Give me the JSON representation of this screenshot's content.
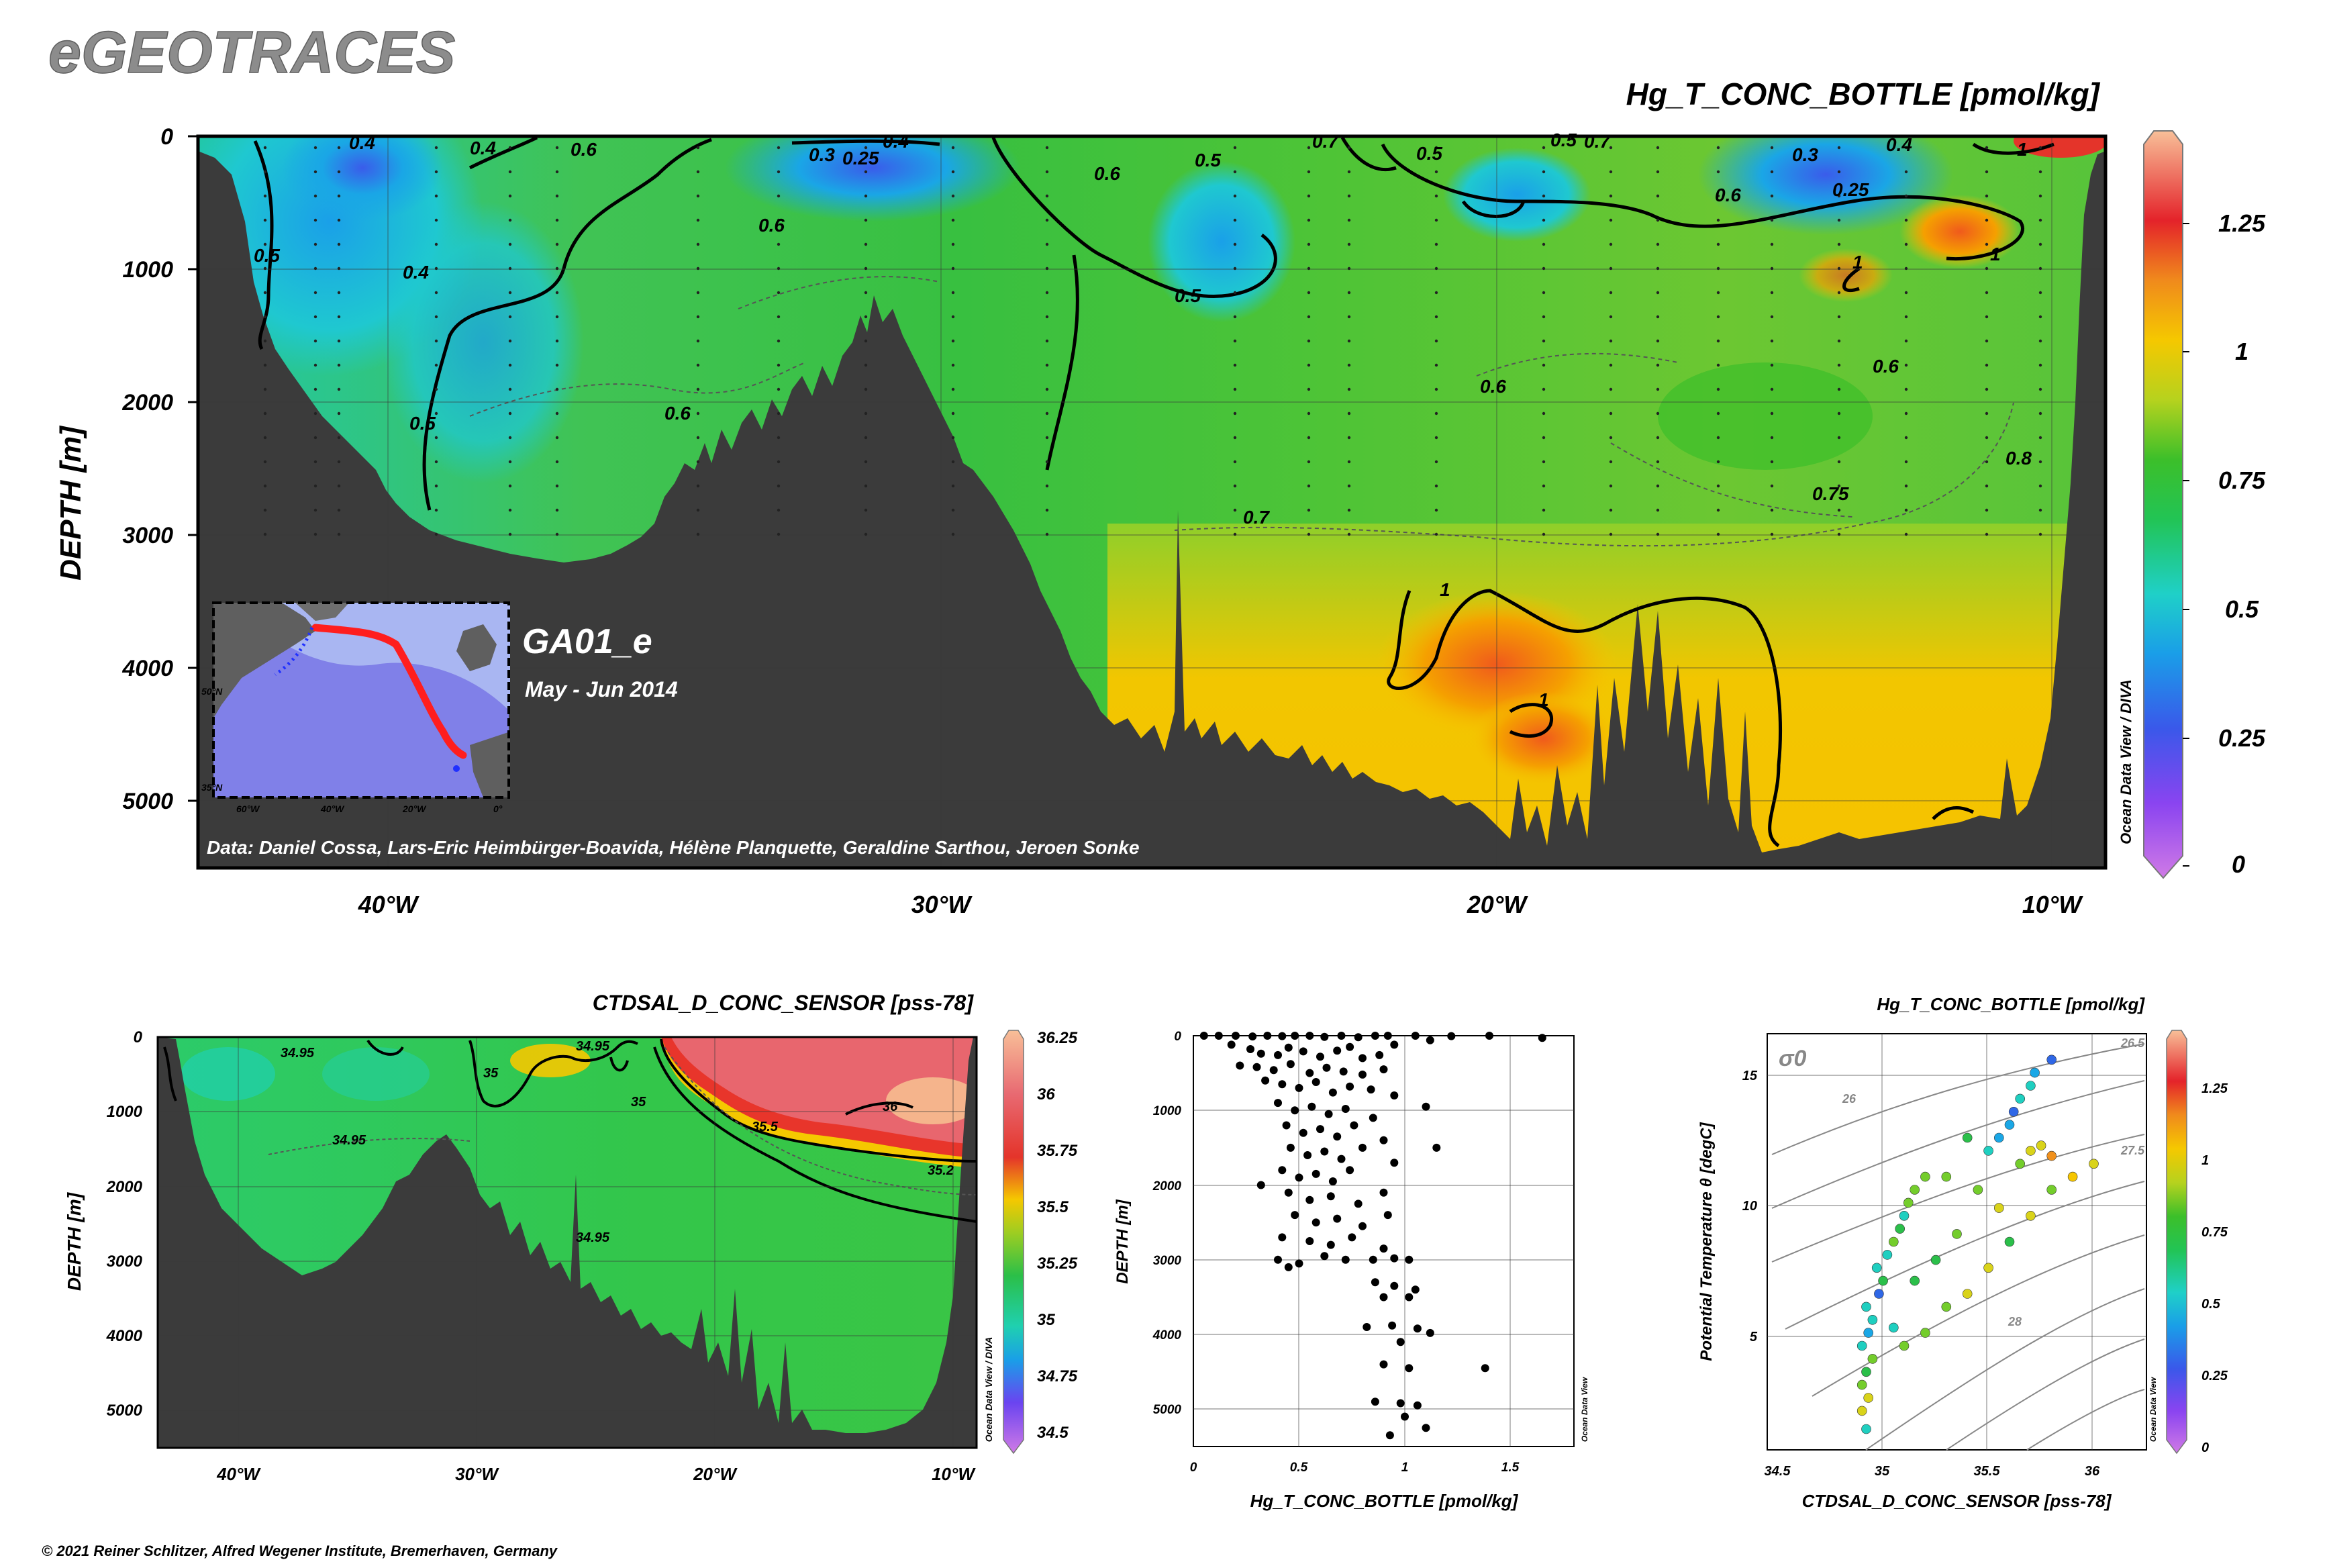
{
  "logo": "eGEOTRACES",
  "copyright": "© 2021 Reiner Schlitzer, Alfred Wegener Institute, Bremerhaven, Germany",
  "colors": {
    "bathymetry": "#3b3b3b",
    "scale": [
      "#d07ae6",
      "#7a3cf2",
      "#2f67e6",
      "#1aa7e6",
      "#1fcfc0",
      "#2bbf4a",
      "#74cd2c",
      "#d9d31a",
      "#f6c600",
      "#f0901c",
      "#e43423",
      "#f6b48c"
    ]
  },
  "main": {
    "title": "Hg_T_CONC_BOTTLE [pmol/kg]",
    "ylabel": "DEPTH [m]",
    "yticks": [
      "0",
      "1000",
      "2000",
      "3000",
      "4000",
      "5000"
    ],
    "xticks": [
      "40°W",
      "30°W",
      "20°W",
      "10°W"
    ],
    "cruise": "GA01_e",
    "dates": "May - Jun 2014",
    "credits": "Data: Daniel Cossa, Lars-Eric Heimbürger-Boavida, Hélène Planquette, Geraldine Sarthou, Jeroen Sonke",
    "odv": "Ocean Data View / DIVA",
    "colorbar_ticks": [
      "0",
      "0.25",
      "0.5",
      "0.75",
      "1",
      "1.25"
    ],
    "contour_labels": [
      "0.25",
      "0.3",
      "0.4",
      "0.5",
      "0.6",
      "0.7",
      "0.75",
      "0.8",
      "1"
    ],
    "inset": {
      "lat_labels": [
        "50°N",
        "35°N"
      ],
      "lon_labels": [
        "60°W",
        "40°W",
        "20°W",
        "0°"
      ]
    }
  },
  "sal": {
    "title": "CTDSAL_D_CONC_SENSOR [pss-78]",
    "ylabel": "DEPTH [m]",
    "yticks": [
      "0",
      "1000",
      "2000",
      "3000",
      "4000",
      "5000"
    ],
    "xticks": [
      "40°W",
      "30°W",
      "20°W",
      "10°W"
    ],
    "odv": "Ocean Data View / DIVA",
    "colorbar_ticks": [
      "34.5",
      "34.75",
      "35",
      "35.25",
      "35.5",
      "35.75",
      "36",
      "36.25"
    ],
    "contour_labels": [
      "34.95",
      "35",
      "35.2",
      "35.5",
      "36"
    ]
  },
  "profile": {
    "ylabel": "DEPTH [m]",
    "xlabel": "Hg_T_CONC_BOTTLE [pmol/kg]",
    "yticks": [
      "0",
      "1000",
      "2000",
      "3000",
      "4000",
      "5000"
    ],
    "xticks": [
      "0",
      "0.5",
      "1",
      "1.5"
    ],
    "odv": "Ocean Data View"
  },
  "ts": {
    "title": "Hg_T_CONC_BOTTLE [pmol/kg]",
    "xlabel": "CTDSAL_D_CONC_SENSOR [pss-78]",
    "ylabel": "Potential Temperature θ [degC]",
    "sigma": "σ0",
    "xticks": [
      "34.5",
      "35",
      "35.5",
      "36"
    ],
    "yticks": [
      "5",
      "10",
      "15"
    ],
    "isopycnal_labels": [
      "26",
      "26.5",
      "27.5",
      "28"
    ],
    "odv": "Ocean Data View",
    "colorbar_ticks": [
      "0",
      "0.25",
      "0.5",
      "0.75",
      "1",
      "1.25"
    ]
  },
  "chart_data": [
    {
      "type": "heatmap",
      "title": "Hg_T_CONC_BOTTLE [pmol/kg]",
      "ylabel": "DEPTH [m]",
      "xlim": [
        -43.5,
        -9
      ],
      "ylim": [
        5500,
        0
      ],
      "colorbar_range": [
        0,
        1.4
      ],
      "contour_levels": [
        0.25,
        0.3,
        0.4,
        0.5,
        0.6,
        0.7,
        0.75,
        0.8,
        1
      ],
      "depth_layers": [
        {
          "depth": 0,
          "lon": [
            -43,
            -38,
            -32,
            -27,
            -22,
            -18,
            -14,
            -10
          ],
          "value": [
            0.45,
            0.6,
            0.3,
            0.6,
            0.65,
            0.5,
            0.3,
            1.2
          ]
        },
        {
          "depth": 500,
          "lon": [
            -43,
            -38,
            -32,
            -27,
            -22,
            -18,
            -14,
            -10
          ],
          "value": [
            0.45,
            0.55,
            0.55,
            0.6,
            0.5,
            0.65,
            0.6,
            1.0
          ]
        },
        {
          "depth": 1000,
          "lon": [
            -43,
            -38,
            -32,
            -27,
            -22,
            -18,
            -14,
            -10
          ],
          "value": [
            0.4,
            0.55,
            0.6,
            0.6,
            0.55,
            0.7,
            0.85,
            0.8
          ]
        },
        {
          "depth": 2000,
          "lon": [
            -43,
            -38,
            -32,
            -27,
            -22,
            -18,
            -14,
            -10
          ],
          "value": [
            0.4,
            0.55,
            0.6,
            0.65,
            0.65,
            0.7,
            0.75,
            0.8
          ]
        },
        {
          "depth": 3000,
          "lon": [
            -38,
            -27,
            -22,
            -18,
            -14,
            -10
          ],
          "value": [
            0.45,
            0.7,
            0.8,
            0.85,
            0.85,
            0.85
          ]
        },
        {
          "depth": 4000,
          "lon": [
            -22,
            -18,
            -14,
            -10
          ],
          "value": [
            0.95,
            1.05,
            0.95,
            0.9
          ]
        },
        {
          "depth": 5000,
          "lon": [
            -14,
            -10
          ],
          "value": [
            0.9,
            0.9
          ]
        }
      ]
    },
    {
      "type": "heatmap",
      "title": "CTDSAL_D_CONC_SENSOR [pss-78]",
      "ylabel": "DEPTH [m]",
      "xlim": [
        -43.5,
        -9
      ],
      "ylim": [
        5500,
        0
      ],
      "colorbar_range": [
        34.45,
        36.3
      ],
      "contour_levels": [
        34.95,
        35,
        35.2,
        35.5,
        36
      ],
      "depth_layers": [
        {
          "depth": 0,
          "lon": [
            -43,
            -36,
            -30,
            -24,
            -18,
            -12
          ],
          "value": [
            34.9,
            34.95,
            35.0,
            35.1,
            35.7,
            35.7
          ]
        },
        {
          "depth": 500,
          "lon": [
            -43,
            -36,
            -30,
            -24,
            -18,
            -12
          ],
          "value": [
            34.9,
            34.95,
            34.95,
            35.0,
            35.65,
            35.9
          ]
        },
        {
          "depth": 1000,
          "lon": [
            -43,
            -36,
            -30,
            -24,
            -18,
            -12
          ],
          "value": [
            34.95,
            34.95,
            34.95,
            34.98,
            35.3,
            35.75
          ]
        },
        {
          "depth": 1500,
          "lon": [
            -43,
            -30,
            -20,
            -12
          ],
          "value": [
            34.95,
            34.95,
            35.05,
            35.4
          ]
        },
        {
          "depth": 3000,
          "lon": [
            -43,
            -30,
            -20,
            -12
          ],
          "value": [
            34.93,
            34.93,
            34.94,
            34.95
          ]
        }
      ]
    },
    {
      "type": "scatter",
      "xlabel": "Hg_T_CONC_BOTTLE [pmol/kg]",
      "ylabel": "DEPTH [m]",
      "xlim": [
        0,
        1.8
      ],
      "ylim": [
        5500,
        0
      ],
      "points": [
        [
          0.05,
          0
        ],
        [
          0.12,
          0
        ],
        [
          0.2,
          0
        ],
        [
          0.28,
          10
        ],
        [
          0.35,
          0
        ],
        [
          0.42,
          5
        ],
        [
          0.48,
          0
        ],
        [
          0.55,
          0
        ],
        [
          0.62,
          15
        ],
        [
          0.7,
          0
        ],
        [
          0.78,
          20
        ],
        [
          0.86,
          0
        ],
        [
          0.92,
          0
        ],
        [
          1.05,
          0
        ],
        [
          1.22,
          5
        ],
        [
          1.4,
          0
        ],
        [
          1.65,
          30
        ],
        [
          0.18,
          120
        ],
        [
          0.27,
          180
        ],
        [
          0.32,
          240
        ],
        [
          0.4,
          260
        ],
        [
          0.45,
          160
        ],
        [
          0.52,
          210
        ],
        [
          0.6,
          280
        ],
        [
          0.68,
          200
        ],
        [
          0.74,
          150
        ],
        [
          0.8,
          300
        ],
        [
          0.88,
          260
        ],
        [
          0.95,
          120
        ],
        [
          1.12,
          60
        ],
        [
          0.22,
          400
        ],
        [
          0.3,
          420
        ],
        [
          0.38,
          460
        ],
        [
          0.46,
          380
        ],
        [
          0.55,
          500
        ],
        [
          0.63,
          430
        ],
        [
          0.71,
          480
        ],
        [
          0.8,
          520
        ],
        [
          0.9,
          450
        ],
        [
          0.34,
          600
        ],
        [
          0.42,
          650
        ],
        [
          0.5,
          700
        ],
        [
          0.58,
          620
        ],
        [
          0.66,
          760
        ],
        [
          0.74,
          680
        ],
        [
          0.84,
          720
        ],
        [
          0.95,
          800
        ],
        [
          0.4,
          900
        ],
        [
          0.48,
          1000
        ],
        [
          0.56,
          950
        ],
        [
          0.64,
          1050
        ],
        [
          0.72,
          980
        ],
        [
          0.85,
          1100
        ],
        [
          1.1,
          950
        ],
        [
          0.44,
          1200
        ],
        [
          0.52,
          1300
        ],
        [
          0.6,
          1250
        ],
        [
          0.68,
          1350
        ],
        [
          0.76,
          1200
        ],
        [
          0.9,
          1400
        ],
        [
          0.46,
          1500
        ],
        [
          0.54,
          1600
        ],
        [
          0.62,
          1550
        ],
        [
          0.7,
          1650
        ],
        [
          0.8,
          1500
        ],
        [
          0.95,
          1700
        ],
        [
          1.15,
          1500
        ],
        [
          0.42,
          1800
        ],
        [
          0.5,
          1900
        ],
        [
          0.58,
          1850
        ],
        [
          0.66,
          1950
        ],
        [
          0.74,
          1800
        ],
        [
          0.32,
          2000
        ],
        [
          0.45,
          2100
        ],
        [
          0.55,
          2200
        ],
        [
          0.65,
          2150
        ],
        [
          0.78,
          2250
        ],
        [
          0.9,
          2100
        ],
        [
          0.48,
          2400
        ],
        [
          0.58,
          2500
        ],
        [
          0.68,
          2450
        ],
        [
          0.8,
          2550
        ],
        [
          0.92,
          2400
        ],
        [
          0.42,
          2700
        ],
        [
          0.55,
          2750
        ],
        [
          0.65,
          2800
        ],
        [
          0.75,
          2700
        ],
        [
          0.9,
          2850
        ],
        [
          0.4,
          3000
        ],
        [
          0.5,
          3050
        ],
        [
          0.62,
          2950
        ],
        [
          0.72,
          3000
        ],
        [
          0.85,
          3000
        ],
        [
          0.95,
          2980
        ],
        [
          1.02,
          3000
        ],
        [
          0.45,
          3100
        ],
        [
          0.86,
          3300
        ],
        [
          0.95,
          3350
        ],
        [
          1.05,
          3400
        ],
        [
          1.02,
          3500
        ],
        [
          0.9,
          3500
        ],
        [
          0.82,
          3900
        ],
        [
          0.94,
          3880
        ],
        [
          1.06,
          3920
        ],
        [
          1.12,
          3980
        ],
        [
          0.98,
          4100
        ],
        [
          0.9,
          4400
        ],
        [
          1.02,
          4450
        ],
        [
          1.38,
          4450
        ],
        [
          0.86,
          4900
        ],
        [
          0.98,
          4920
        ],
        [
          1.06,
          4950
        ],
        [
          1.0,
          5100
        ],
        [
          1.1,
          5250
        ],
        [
          0.93,
          5350
        ]
      ]
    },
    {
      "type": "scatter",
      "title": "Hg_T_CONC_BOTTLE [pmol/kg]",
      "xlabel": "CTDSAL_D_CONC_SENSOR [pss-78]",
      "ylabel": "Potential Temperature θ [degC]",
      "xlim": [
        34.45,
        36.25
      ],
      "ylim": [
        0.5,
        16.5
      ],
      "color_range": [
        0,
        1.4
      ],
      "points": [
        [
          34.92,
          1.3,
          0.55
        ],
        [
          34.9,
          2.0,
          0.85
        ],
        [
          34.93,
          2.5,
          0.9
        ],
        [
          34.9,
          3.0,
          0.7
        ],
        [
          34.92,
          3.5,
          0.6
        ],
        [
          34.95,
          4.0,
          0.8
        ],
        [
          34.9,
          4.5,
          0.55
        ],
        [
          34.93,
          5.0,
          0.4
        ],
        [
          34.95,
          5.5,
          0.5
        ],
        [
          34.92,
          6.0,
          0.45
        ],
        [
          34.98,
          6.5,
          0.3
        ],
        [
          35.0,
          7.0,
          0.6
        ],
        [
          34.97,
          7.5,
          0.5
        ],
        [
          35.02,
          8.0,
          0.55
        ],
        [
          35.05,
          8.5,
          0.7
        ],
        [
          35.08,
          9.0,
          0.6
        ],
        [
          35.1,
          9.5,
          0.5
        ],
        [
          35.12,
          10.0,
          0.75
        ],
        [
          35.15,
          10.5,
          0.8
        ],
        [
          35.2,
          11.0,
          0.7
        ],
        [
          35.1,
          4.5,
          0.75
        ],
        [
          35.2,
          5.0,
          0.8
        ],
        [
          35.3,
          6.0,
          0.7
        ],
        [
          35.4,
          6.5,
          0.85
        ],
        [
          35.5,
          7.5,
          0.9
        ],
        [
          35.6,
          8.5,
          0.65
        ],
        [
          35.7,
          9.5,
          0.95
        ],
        [
          35.8,
          10.5,
          0.8
        ],
        [
          35.9,
          11.0,
          1.05
        ],
        [
          36.0,
          11.5,
          0.9
        ],
        [
          35.5,
          12.0,
          0.45
        ],
        [
          35.55,
          12.5,
          0.35
        ],
        [
          35.6,
          13.0,
          0.4
        ],
        [
          35.62,
          13.5,
          0.3
        ],
        [
          35.65,
          14.0,
          0.5
        ],
        [
          35.7,
          14.5,
          0.45
        ],
        [
          35.72,
          15.0,
          0.35
        ],
        [
          35.8,
          15.5,
          0.3
        ],
        [
          35.65,
          11.5,
          0.7
        ],
        [
          35.7,
          12.0,
          0.85
        ],
        [
          35.75,
          12.2,
          0.95
        ],
        [
          35.8,
          11.8,
          1.1
        ],
        [
          35.4,
          12.5,
          0.6
        ],
        [
          35.3,
          11.0,
          0.75
        ],
        [
          35.45,
          10.5,
          0.8
        ],
        [
          35.55,
          9.8,
          0.85
        ],
        [
          35.35,
          8.8,
          0.7
        ],
        [
          35.25,
          7.8,
          0.65
        ],
        [
          35.15,
          7.0,
          0.6
        ],
        [
          35.05,
          5.2,
          0.5
        ]
      ]
    }
  ]
}
